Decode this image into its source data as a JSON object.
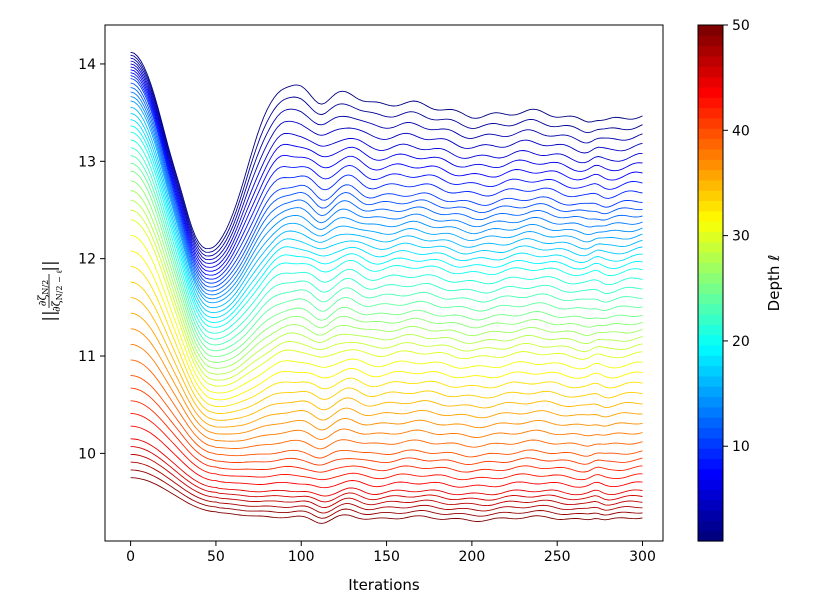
{
  "chart_data": {
    "type": "line",
    "xlabel": "Iterations",
    "ylabel": "||∂ζN/2 / ∂ζN/2−ℓ||",
    "ylabel_parts": {
      "bars_left": "||",
      "bars_right": "||",
      "numerator": "∂ζ",
      "numerator_sub": "N/2",
      "denominator": "∂ζ",
      "denominator_sub": "N/2 − ℓ"
    },
    "xlim": [
      -15,
      312
    ],
    "ylim": [
      9.1,
      14.4
    ],
    "xticks": [
      0,
      50,
      100,
      150,
      200,
      250,
      300
    ],
    "yticks": [
      10,
      11,
      12,
      13,
      14
    ],
    "grid": false,
    "x_range": [
      0,
      300
    ],
    "series_count": 50,
    "colormap": "jet",
    "colorbar": {
      "label": "Depth ℓ",
      "min": 1,
      "max": 50,
      "ticks": [
        10,
        20,
        30,
        40,
        50
      ],
      "levels": 50
    },
    "series_profile": {
      "depth": [
        1,
        5,
        10,
        15,
        20,
        25,
        30,
        35,
        40,
        45,
        50
      ],
      "start_y": [
        14.12,
        14.0,
        13.85,
        13.62,
        13.3,
        12.9,
        12.4,
        11.6,
        10.8,
        10.15,
        9.75
      ],
      "min_y": [
        12.1,
        11.95,
        11.75,
        11.55,
        11.3,
        11.0,
        10.7,
        10.35,
        10.0,
        9.65,
        9.4
      ],
      "end_y": [
        13.4,
        13.0,
        12.55,
        12.2,
        11.85,
        11.4,
        11.0,
        10.5,
        10.0,
        9.6,
        9.33
      ]
    }
  }
}
